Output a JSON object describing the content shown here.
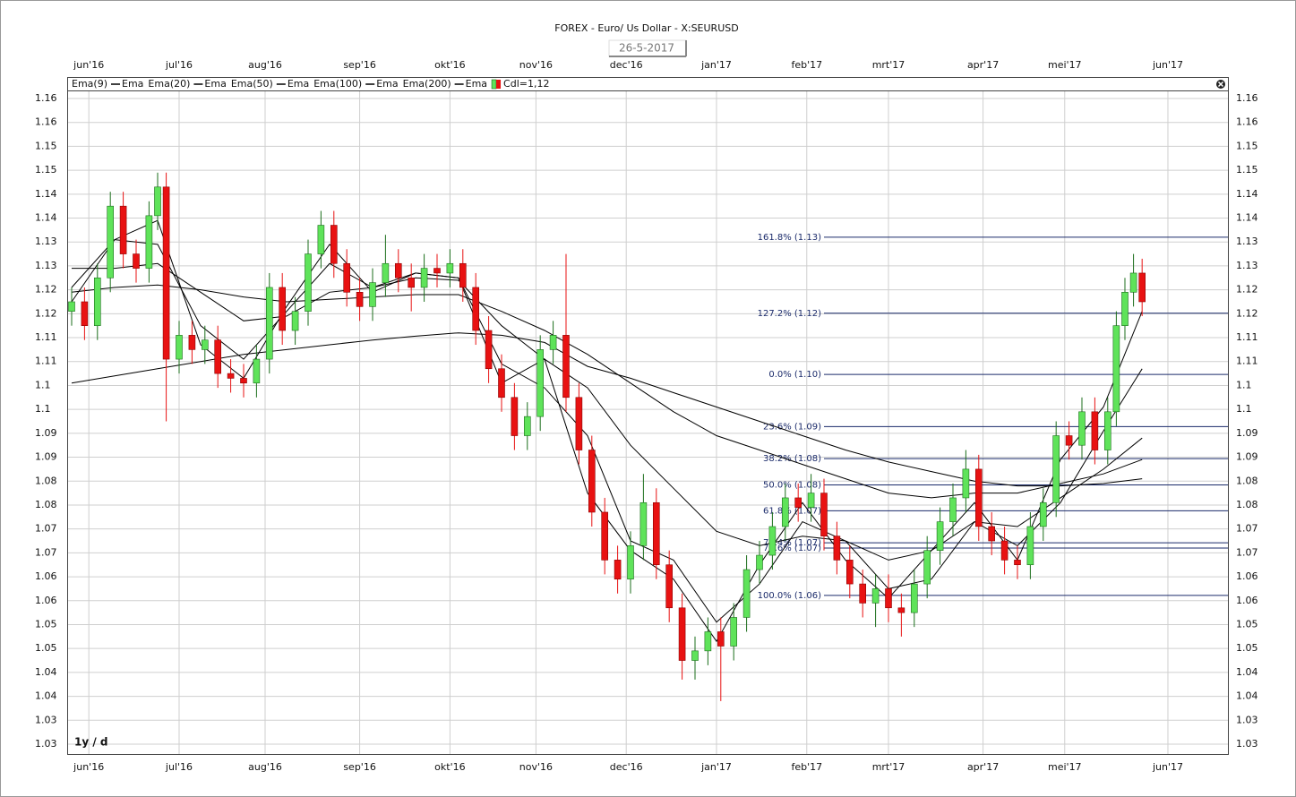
{
  "chart_data": {
    "type": "candlestick",
    "title": "FOREX - Euro/ Us Dollar - X:SEURUSD",
    "date": "26-5-2017",
    "period": "1y / d",
    "candle_label": "Cdl=1,12",
    "up_color": "#5fe35a",
    "down_color": "#e81212",
    "grid": true,
    "xlim": [
      -1.04,
      269.17
    ],
    "xticks": [
      {
        "value": 4,
        "label": "jun'16"
      },
      {
        "value": 25,
        "label": "jul'16"
      },
      {
        "value": 45,
        "label": "aug'16"
      },
      {
        "value": 67,
        "label": "sep'16"
      },
      {
        "value": 88,
        "label": "okt'16"
      },
      {
        "value": 108,
        "label": "nov'16"
      },
      {
        "value": 129,
        "label": "dec'16"
      },
      {
        "value": 150,
        "label": "jan'17"
      },
      {
        "value": 171,
        "label": "feb'17"
      },
      {
        "value": 190,
        "label": "mrt'17"
      },
      {
        "value": 212,
        "label": "apr'17"
      },
      {
        "value": 231,
        "label": "mei'17"
      },
      {
        "value": 255,
        "label": "jun'17"
      }
    ],
    "ylim": [
      1.02275,
      1.1615
    ],
    "yticks": [
      {
        "value": 1.16,
        "label": "1.16"
      },
      {
        "value": 1.155,
        "label": "1.16"
      },
      {
        "value": 1.15,
        "label": "1.15"
      },
      {
        "value": 1.145,
        "label": "1.15"
      },
      {
        "value": 1.14,
        "label": "1.14"
      },
      {
        "value": 1.135,
        "label": "1.14"
      },
      {
        "value": 1.13,
        "label": "1.13"
      },
      {
        "value": 1.125,
        "label": "1.13"
      },
      {
        "value": 1.12,
        "label": "1.12"
      },
      {
        "value": 1.115,
        "label": "1.12"
      },
      {
        "value": 1.11,
        "label": "1.11"
      },
      {
        "value": 1.105,
        "label": "1.11"
      },
      {
        "value": 1.1,
        "label": "1.1"
      },
      {
        "value": 1.095,
        "label": "1.1"
      },
      {
        "value": 1.09,
        "label": "1.09"
      },
      {
        "value": 1.085,
        "label": "1.09"
      },
      {
        "value": 1.08,
        "label": "1.08"
      },
      {
        "value": 1.075,
        "label": "1.08"
      },
      {
        "value": 1.07,
        "label": "1.07"
      },
      {
        "value": 1.065,
        "label": "1.07"
      },
      {
        "value": 1.06,
        "label": "1.06"
      },
      {
        "value": 1.055,
        "label": "1.06"
      },
      {
        "value": 1.05,
        "label": "1.05"
      },
      {
        "value": 1.045,
        "label": "1.05"
      },
      {
        "value": 1.04,
        "label": "1.04"
      },
      {
        "value": 1.035,
        "label": "1.04"
      },
      {
        "value": 1.03,
        "label": "1.03"
      },
      {
        "value": 1.025,
        "label": "1.03"
      }
    ],
    "candles": {
      "x": [
        0,
        3,
        6,
        9,
        12,
        15,
        18,
        20,
        22,
        25,
        28,
        31,
        34,
        37,
        40,
        43,
        46,
        49,
        52,
        55,
        58,
        61,
        64,
        67,
        70,
        73,
        76,
        79,
        82,
        85,
        88,
        91,
        94,
        97,
        100,
        103,
        106,
        109,
        112,
        115,
        118,
        121,
        124,
        127,
        130,
        133,
        136,
        139,
        142,
        145,
        148,
        151,
        154,
        157,
        160,
        163,
        166,
        169,
        172,
        175,
        178,
        181,
        184,
        187,
        190,
        193,
        196,
        199,
        202,
        205,
        208,
        211,
        214,
        217,
        220,
        223,
        226,
        229,
        232,
        235,
        238,
        241,
        243,
        245,
        247,
        249
      ],
      "open": [
        1.1155,
        1.1175,
        1.1125,
        1.1225,
        1.1375,
        1.1275,
        1.1245,
        1.1355,
        1.1415,
        1.1055,
        1.1105,
        1.1075,
        1.1095,
        1.1025,
        1.1015,
        1.1005,
        1.1055,
        1.1205,
        1.1115,
        1.1155,
        1.1275,
        1.1335,
        1.1255,
        1.1195,
        1.1165,
        1.1215,
        1.1255,
        1.1225,
        1.1205,
        1.1245,
        1.1235,
        1.1255,
        1.1205,
        1.1115,
        1.1035,
        1.0975,
        1.0895,
        1.0935,
        1.1075,
        1.1105,
        1.0975,
        1.0865,
        1.0735,
        1.0635,
        1.0595,
        1.0665,
        1.0755,
        1.0625,
        1.0535,
        1.0425,
        1.0445,
        1.0485,
        1.0455,
        1.0515,
        1.0615,
        1.0645,
        1.0705,
        1.0765,
        1.0745,
        1.0775,
        1.0685,
        1.0635,
        1.0585,
        1.0545,
        1.0575,
        1.0535,
        1.0525,
        1.0585,
        1.0655,
        1.0715,
        1.0765,
        1.0825,
        1.0705,
        1.0675,
        1.0635,
        1.0625,
        1.0705,
        1.0755,
        1.0895,
        1.0875,
        1.0945,
        1.0865,
        1.0945,
        1.1125,
        1.1195,
        1.1235
      ],
      "high": [
        1.1205,
        1.1205,
        1.1255,
        1.1405,
        1.1405,
        1.1305,
        1.1385,
        1.1445,
        1.1445,
        1.1135,
        1.1135,
        1.1125,
        1.1125,
        1.1055,
        1.1045,
        1.1085,
        1.1235,
        1.1235,
        1.1185,
        1.1305,
        1.1365,
        1.1365,
        1.1285,
        1.1225,
        1.1245,
        1.1315,
        1.1285,
        1.1255,
        1.1275,
        1.1275,
        1.1285,
        1.1285,
        1.1235,
        1.1145,
        1.1065,
        1.1005,
        1.0965,
        1.1105,
        1.1135,
        1.1275,
        1.1005,
        1.0895,
        1.0765,
        1.0665,
        1.0695,
        1.0815,
        1.0785,
        1.0655,
        1.0565,
        1.0475,
        1.0515,
        1.0515,
        1.0545,
        1.0645,
        1.0675,
        1.0735,
        1.0795,
        1.0795,
        1.0815,
        1.0805,
        1.0715,
        1.0665,
        1.0615,
        1.0605,
        1.0605,
        1.0565,
        1.0615,
        1.0685,
        1.0745,
        1.0795,
        1.0865,
        1.0855,
        1.0735,
        1.0705,
        1.0665,
        1.0735,
        1.0785,
        1.0925,
        1.0925,
        1.0975,
        1.0975,
        1.0975,
        1.1155,
        1.1225,
        1.1275,
        1.1265
      ],
      "low": [
        1.1125,
        1.1095,
        1.1095,
        1.1195,
        1.1245,
        1.1215,
        1.1215,
        1.1325,
        1.0925,
        1.1025,
        1.1045,
        1.1045,
        1.0995,
        1.0985,
        1.0975,
        1.0975,
        1.1025,
        1.1085,
        1.1085,
        1.1125,
        1.1245,
        1.1225,
        1.1165,
        1.1135,
        1.1135,
        1.1185,
        1.1195,
        1.1155,
        1.1175,
        1.1205,
        1.1205,
        1.1175,
        1.1085,
        1.1005,
        1.0945,
        1.0865,
        1.0865,
        1.0905,
        1.1045,
        1.0945,
        1.0835,
        1.0705,
        1.0605,
        1.0565,
        1.0565,
        1.0635,
        1.0595,
        1.0505,
        1.0385,
        1.0385,
        1.0415,
        1.034,
        1.0425,
        1.0485,
        1.0585,
        1.0615,
        1.0675,
        1.0715,
        1.0715,
        1.0655,
        1.0605,
        1.0555,
        1.0515,
        1.0495,
        1.0505,
        1.0475,
        1.0495,
        1.0555,
        1.0625,
        1.0685,
        1.0735,
        1.0675,
        1.0645,
        1.0605,
        1.0595,
        1.0595,
        1.0675,
        1.0725,
        1.0845,
        1.0845,
        1.0835,
        1.0835,
        1.0915,
        1.1095,
        1.1165,
        1.1145
      ],
      "close": [
        1.1175,
        1.1125,
        1.1225,
        1.1375,
        1.1275,
        1.1245,
        1.1355,
        1.1415,
        1.1055,
        1.1105,
        1.1075,
        1.1095,
        1.1025,
        1.1015,
        1.1005,
        1.1055,
        1.1205,
        1.1115,
        1.1155,
        1.1275,
        1.1335,
        1.1255,
        1.1195,
        1.1165,
        1.1215,
        1.1255,
        1.1225,
        1.1205,
        1.1245,
        1.1235,
        1.1255,
        1.1205,
        1.1115,
        1.1035,
        1.0975,
        1.0895,
        1.0935,
        1.1075,
        1.1105,
        1.0975,
        1.0865,
        1.0735,
        1.0635,
        1.0595,
        1.0665,
        1.0755,
        1.0625,
        1.0535,
        1.0425,
        1.0445,
        1.0485,
        1.0455,
        1.0515,
        1.0615,
        1.0645,
        1.0705,
        1.0765,
        1.0745,
        1.0775,
        1.0685,
        1.0635,
        1.0585,
        1.0545,
        1.0575,
        1.0535,
        1.0525,
        1.0585,
        1.0655,
        1.0715,
        1.0765,
        1.0825,
        1.0705,
        1.0675,
        1.0635,
        1.0625,
        1.0705,
        1.0755,
        1.0895,
        1.0875,
        1.0945,
        1.0865,
        1.0945,
        1.1125,
        1.1195,
        1.1235,
        1.1175
      ]
    },
    "ema_x": [
      0,
      10,
      20,
      30,
      40,
      50,
      60,
      70,
      80,
      90,
      100,
      110,
      120,
      130,
      140,
      150,
      160,
      170,
      180,
      190,
      200,
      210,
      220,
      230,
      240,
      249
    ],
    "series": [
      {
        "name": "Ema(9)",
        "legend_label": "Ema",
        "color": "#000000",
        "values": [
          1.1175,
          1.1305,
          1.1345,
          1.1085,
          1.1015,
          1.1165,
          1.1295,
          1.1195,
          1.1235,
          1.1225,
          1.1005,
          1.1055,
          1.0775,
          1.0655,
          1.0595,
          1.0465,
          1.0625,
          1.0755,
          1.0635,
          1.0555,
          1.0655,
          1.0755,
          1.0635,
          1.0845,
          1.0955,
          1.1155
        ]
      },
      {
        "name": "Ema(20)",
        "legend_label": "Ema",
        "color": "#000000",
        "values": [
          1.1205,
          1.1305,
          1.1295,
          1.1125,
          1.1055,
          1.1155,
          1.1255,
          1.1205,
          1.1235,
          1.1225,
          1.1045,
          1.0995,
          1.0895,
          1.0675,
          1.0635,
          1.0505,
          1.0585,
          1.0715,
          1.0675,
          1.0575,
          1.0595,
          1.0715,
          1.0665,
          1.0755,
          1.0905,
          1.1035
        ]
      },
      {
        "name": "Ema(50)",
        "legend_label": "Ema",
        "color": "#000000",
        "values": [
          1.1245,
          1.1245,
          1.1255,
          1.1195,
          1.1135,
          1.1145,
          1.1195,
          1.1205,
          1.1225,
          1.122,
          1.1125,
          1.1055,
          1.0995,
          1.0875,
          1.0785,
          1.0695,
          1.0665,
          1.0685,
          1.0675,
          1.0635,
          1.0655,
          1.0715,
          1.0705,
          1.0765,
          1.0825,
          1.089
        ]
      },
      {
        "name": "Ema(100)",
        "legend_label": "Ema",
        "color": "#000000",
        "values": [
          1.1195,
          1.1205,
          1.121,
          1.12,
          1.1185,
          1.1175,
          1.118,
          1.1185,
          1.119,
          1.119,
          1.1155,
          1.1115,
          1.1065,
          1.1005,
          1.0945,
          1.0895,
          1.0865,
          1.0835,
          1.0805,
          1.0775,
          1.0765,
          1.0775,
          1.0775,
          1.0795,
          1.0815,
          1.0845
        ]
      },
      {
        "name": "Ema(200)",
        "legend_label": "Ema",
        "color": "#000000",
        "values": [
          1.1005,
          1.102,
          1.1035,
          1.105,
          1.1065,
          1.1075,
          1.1085,
          1.1095,
          1.1103,
          1.111,
          1.1105,
          1.109,
          1.104,
          1.1015,
          1.0985,
          1.0955,
          1.0925,
          1.0895,
          1.0865,
          1.084,
          1.082,
          1.08,
          1.079,
          1.079,
          1.0795,
          1.0805
        ]
      }
    ],
    "fib_start": 160,
    "fib_levels": [
      {
        "label": "161.8% (1.13)",
        "value": 1.131
      },
      {
        "label": "127.2% (1.12)",
        "value": 1.1151
      },
      {
        "label": "0.0% (1.10)",
        "value": 1.1023
      },
      {
        "label": "23.6% (1.09)",
        "value": 1.0914
      },
      {
        "label": "38.2% (1.08)",
        "value": 1.0847
      },
      {
        "label": "50.0% (1.08)",
        "value": 1.0792
      },
      {
        "label": "61.8% (1.07)",
        "value": 1.0738
      },
      {
        "label": "76.4% (1.07)",
        "value": 1.0671
      },
      {
        "label": "78.6% (1.07)",
        "value": 1.066
      },
      {
        "label": "100.0% (1.06)",
        "value": 1.0561
      }
    ]
  }
}
